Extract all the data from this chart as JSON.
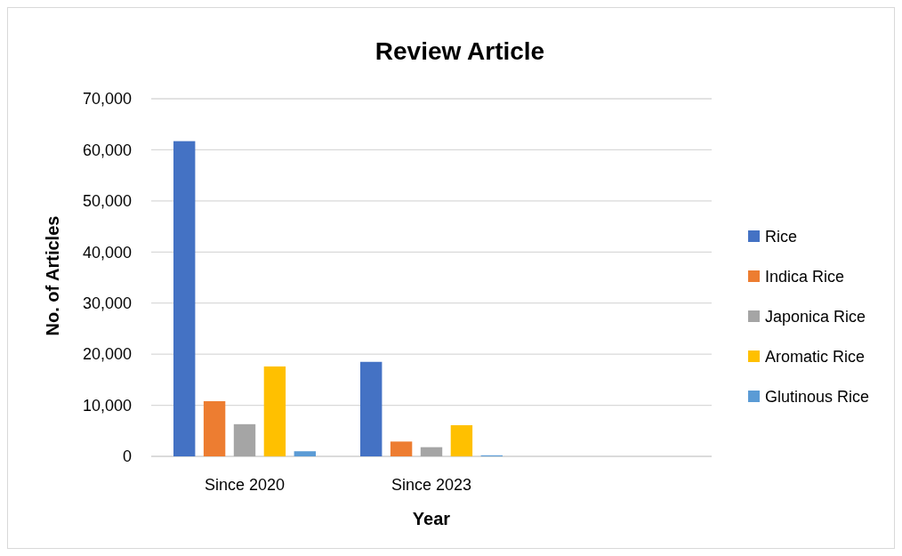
{
  "chart_data": {
    "type": "bar",
    "title": "Review Article",
    "xlabel": "Year",
    "ylabel": "No. of Articles",
    "categories": [
      "Since 2020",
      "Since 2023",
      null
    ],
    "series": [
      {
        "name": "Rice",
        "color": "#4472c4",
        "values": [
          61700,
          18500,
          null
        ]
      },
      {
        "name": "Indica Rice",
        "color": "#ed7d31",
        "values": [
          10800,
          2900,
          null
        ]
      },
      {
        "name": "Japonica Rice",
        "color": "#a5a5a5",
        "values": [
          6300,
          1800,
          null
        ]
      },
      {
        "name": "Aromatic Rice",
        "color": "#ffc000",
        "values": [
          17600,
          6100,
          null
        ]
      },
      {
        "name": "Glutinous Rice",
        "color": "#5b9bd5",
        "values": [
          1000,
          200,
          null
        ]
      }
    ],
    "ylim": [
      0,
      70000
    ],
    "yticks": [
      {
        "value": 0,
        "label": "0"
      },
      {
        "value": 10000,
        "label": "10,000"
      },
      {
        "value": 20000,
        "label": "20,000"
      },
      {
        "value": 30000,
        "label": "30,000"
      },
      {
        "value": 40000,
        "label": "40,000"
      },
      {
        "value": 50000,
        "label": "50,000"
      },
      {
        "value": 60000,
        "label": "60,000"
      },
      {
        "value": 70000,
        "label": "70,000"
      }
    ],
    "grid": "y",
    "legend": "right"
  }
}
